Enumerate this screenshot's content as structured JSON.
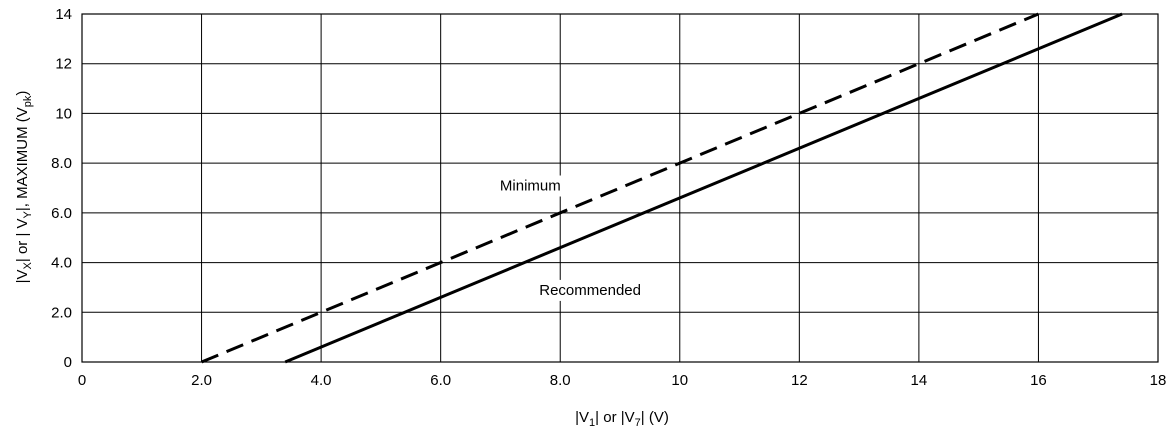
{
  "chart_data": {
    "type": "line",
    "xlabel": {
      "parts": [
        {
          "text": "|V"
        },
        {
          "text": "1",
          "sub": true
        },
        {
          "text": "| or |V"
        },
        {
          "text": "7",
          "sub": true
        },
        {
          "text": "| (V)"
        }
      ]
    },
    "ylabel": {
      "parts": [
        {
          "text": "|V"
        },
        {
          "text": "X",
          "sub": true
        },
        {
          "text": "| or | V"
        },
        {
          "text": "Y",
          "sub": true
        },
        {
          "text": "|, MAXIMUM (V"
        },
        {
          "text": "pk",
          "sub": true
        },
        {
          "text": ")"
        }
      ]
    },
    "xlim": [
      0,
      18
    ],
    "ylim": [
      0,
      14
    ],
    "x_ticks": [
      0,
      2,
      4,
      6,
      8,
      10,
      12,
      14,
      16,
      18
    ],
    "x_tick_labels": [
      "0",
      "2.0",
      "4.0",
      "6.0",
      "8.0",
      "10",
      "12",
      "14",
      "16",
      "18"
    ],
    "y_ticks": [
      0,
      2,
      4,
      6,
      8,
      10,
      12,
      14
    ],
    "y_tick_labels": [
      "0",
      "2.0",
      "4.0",
      "6.0",
      "8.0",
      "10",
      "12",
      "14"
    ],
    "grid": true,
    "series": [
      {
        "name": "Minimum",
        "style": "dashed",
        "color": "#000000",
        "x": [
          2.0,
          16.0
        ],
        "y": [
          0,
          14
        ]
      },
      {
        "name": "Recommended",
        "style": "solid",
        "color": "#000000",
        "x": [
          3.4,
          17.4
        ],
        "y": [
          0,
          14
        ]
      }
    ],
    "annotations": [
      {
        "text": "Minimum",
        "x": 7.5,
        "y": 7.1
      },
      {
        "text": "Recommended",
        "x": 8.5,
        "y": 2.9
      }
    ]
  }
}
